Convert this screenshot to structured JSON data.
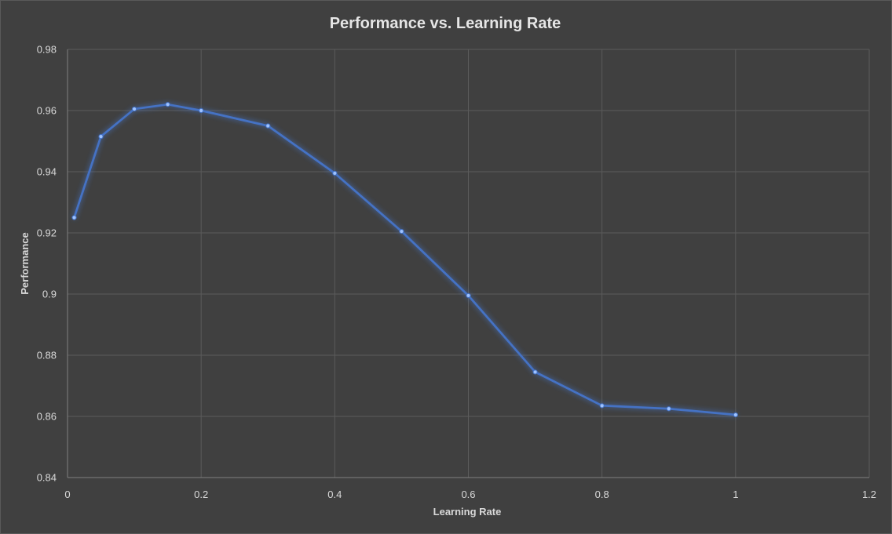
{
  "chart_data": {
    "type": "line",
    "title": "Performance vs. Learning Rate",
    "xlabel": "Learning Rate",
    "ylabel": "Performance",
    "xlim": [
      0,
      1.2
    ],
    "ylim": [
      0.84,
      0.98
    ],
    "x_ticks": [
      "0",
      "0.2",
      "0.4",
      "0.6",
      "0.8",
      "1",
      "1.2"
    ],
    "y_ticks": [
      "0.84",
      "0.86",
      "0.88",
      "0.9",
      "0.92",
      "0.94",
      "0.96",
      "0.98"
    ],
    "grid": true,
    "legend": "none",
    "series": [
      {
        "color": "#4472c4",
        "x": [
          0.01,
          0.05,
          0.1,
          0.15,
          0.2,
          0.3,
          0.4,
          0.5,
          0.6,
          0.7,
          0.8,
          0.9,
          1.0
        ],
        "y": [
          0.925,
          0.9515,
          0.9605,
          0.962,
          0.96,
          0.955,
          0.9395,
          0.9205,
          0.8995,
          0.8745,
          0.8635,
          0.8625,
          0.8605
        ]
      }
    ]
  }
}
